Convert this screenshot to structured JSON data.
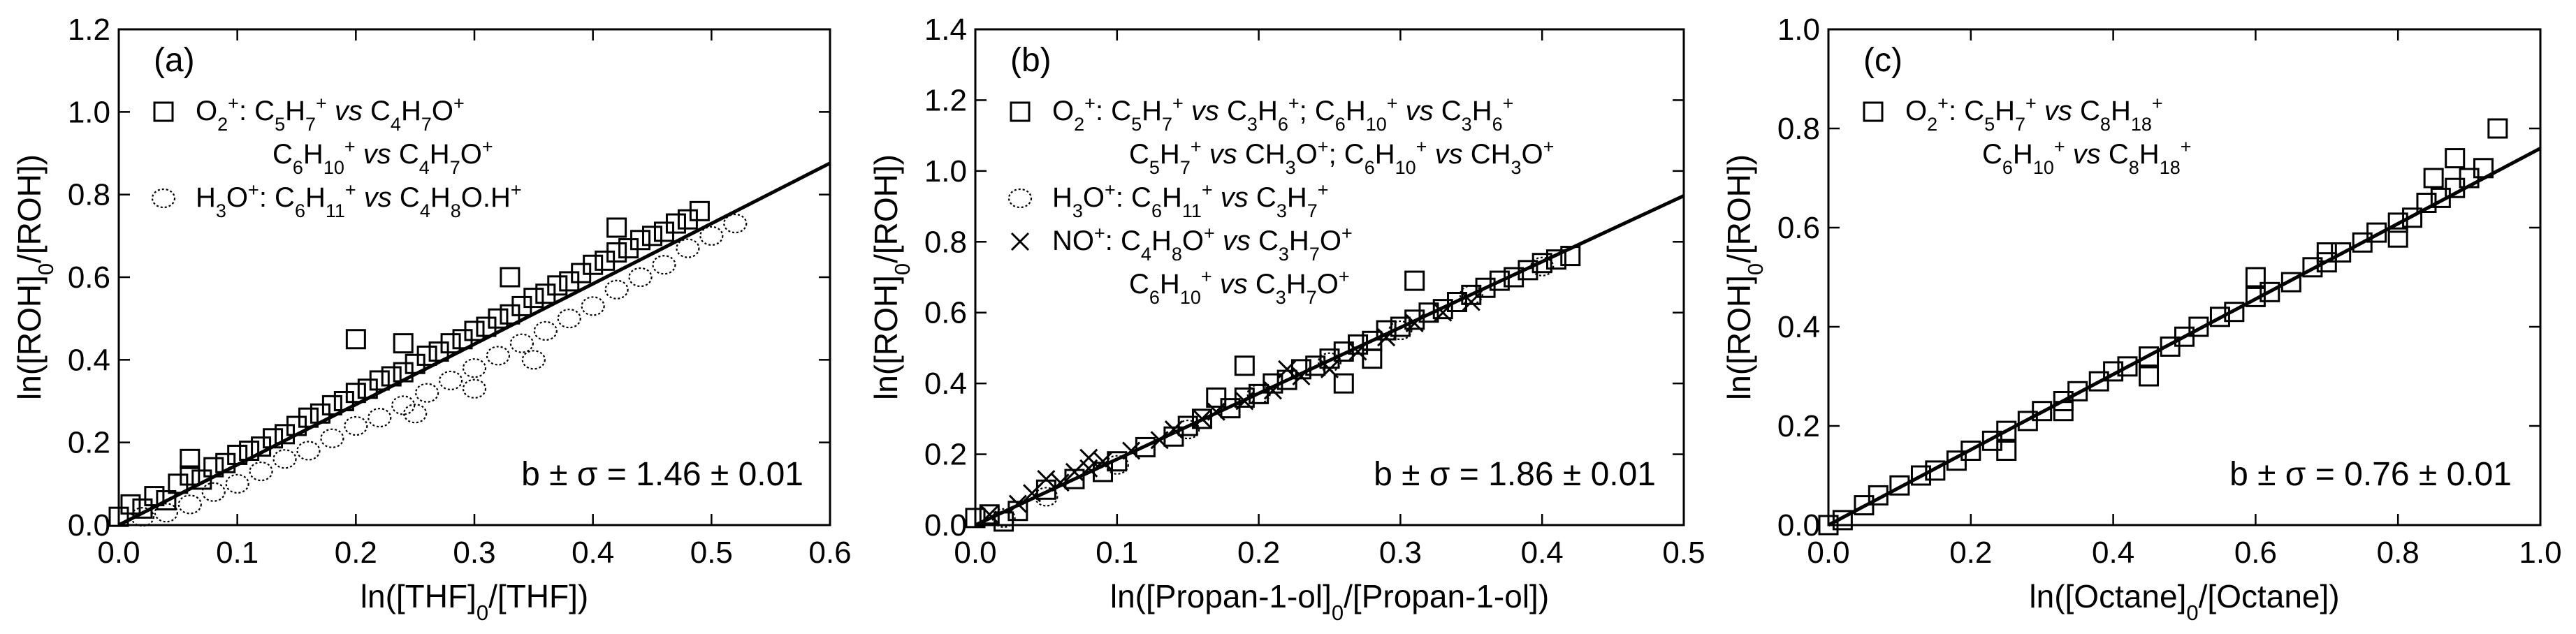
{
  "figure": {
    "panels": [
      {
        "id": "a",
        "letter": "(a)",
        "annotation": "b ± σ = 1.46 ± 0.01",
        "xlabel": "ln([THF]0/[THF])",
        "ylabel": "ln([ROH]0/[ROH])",
        "legend": [
          "O2+: C5H7+ vs C4H7O+",
          "C6H10+ vs C4H7O+",
          "H3O+: C6H11+ vs C4H8O.H+"
        ]
      },
      {
        "id": "b",
        "letter": "(b)",
        "annotation": "b ± σ = 1.86 ± 0.01",
        "xlabel": "ln([Propan-1-ol]0/[Propan-1-ol])",
        "ylabel": "ln([ROH]0/[ROH])",
        "legend": [
          "O2+: C5H7+ vs C3H6+; C6H10+ vs C3H6+",
          "C5H7+ vs CH3O+; C6H10+ vs CH3O+",
          "H3O+: C6H11+ vs C3H7+",
          "NO+: C4H8O+ vs C3H7O+",
          "C6H10+ vs C3H7O+"
        ]
      },
      {
        "id": "c",
        "letter": "(c)",
        "annotation": "b ± σ = 0.76 ± 0.01",
        "xlabel": "ln([Octane]0/[Octane])",
        "ylabel": "ln([ROH]0/[ROH])",
        "legend": [
          "O2+: C5H7+ vs C8H18+",
          "C6H10+ vs C8H18+"
        ]
      }
    ]
  },
  "chart_data": [
    {
      "type": "scatter",
      "panel": "a",
      "xlabel": "ln([THF]0/[THF])",
      "ylabel": "ln([ROH]0/[ROH])",
      "xlim": [
        0.0,
        0.6
      ],
      "ylim": [
        0.0,
        1.2
      ],
      "xticks": [
        0.0,
        0.1,
        0.2,
        0.3,
        0.4,
        0.5,
        0.6
      ],
      "yticks": [
        0.0,
        0.2,
        0.4,
        0.6,
        0.8,
        1.0,
        1.2
      ],
      "xtick_labels": [
        "0.0",
        "0.1",
        "0.2",
        "0.3",
        "0.4",
        "0.5",
        "0.6"
      ],
      "ytick_labels": [
        "0.0",
        "0.2",
        "0.4",
        "0.6",
        "0.8",
        "1.0",
        "1.2"
      ],
      "fit": {
        "slope": 1.46,
        "slope_error": 0.01,
        "x": [
          0.0,
          0.6
        ],
        "y": [
          0.0,
          0.876
        ]
      },
      "series": [
        {
          "name": "O2+: C5H7+ vs C4H7O+; C6H10+ vs C4H7O+",
          "marker": "square",
          "points": [
            [
              0.0,
              0.02
            ],
            [
              0.01,
              0.05
            ],
            [
              0.02,
              0.04
            ],
            [
              0.03,
              0.07
            ],
            [
              0.04,
              0.06
            ],
            [
              0.05,
              0.1
            ],
            [
              0.06,
              0.12
            ],
            [
              0.07,
              0.11
            ],
            [
              0.08,
              0.14
            ],
            [
              0.09,
              0.15
            ],
            [
              0.1,
              0.17
            ],
            [
              0.11,
              0.18
            ],
            [
              0.12,
              0.19
            ],
            [
              0.13,
              0.21
            ],
            [
              0.14,
              0.22
            ],
            [
              0.15,
              0.24
            ],
            [
              0.16,
              0.26
            ],
            [
              0.17,
              0.27
            ],
            [
              0.18,
              0.29
            ],
            [
              0.19,
              0.3
            ],
            [
              0.2,
              0.32
            ],
            [
              0.21,
              0.33
            ],
            [
              0.22,
              0.35
            ],
            [
              0.23,
              0.36
            ],
            [
              0.24,
              0.37
            ],
            [
              0.25,
              0.39
            ],
            [
              0.26,
              0.41
            ],
            [
              0.27,
              0.42
            ],
            [
              0.28,
              0.44
            ],
            [
              0.29,
              0.45
            ],
            [
              0.3,
              0.47
            ],
            [
              0.31,
              0.48
            ],
            [
              0.32,
              0.5
            ],
            [
              0.33,
              0.51
            ],
            [
              0.34,
              0.53
            ],
            [
              0.35,
              0.55
            ],
            [
              0.36,
              0.56
            ],
            [
              0.37,
              0.58
            ],
            [
              0.38,
              0.59
            ],
            [
              0.39,
              0.61
            ],
            [
              0.4,
              0.63
            ],
            [
              0.41,
              0.64
            ],
            [
              0.42,
              0.66
            ],
            [
              0.43,
              0.67
            ],
            [
              0.44,
              0.69
            ],
            [
              0.45,
              0.7
            ],
            [
              0.46,
              0.71
            ],
            [
              0.47,
              0.73
            ],
            [
              0.48,
              0.74
            ],
            [
              0.49,
              0.76
            ],
            [
              0.2,
              0.45
            ],
            [
              0.24,
              0.44
            ],
            [
              0.06,
              0.16
            ],
            [
              0.33,
              0.6
            ],
            [
              0.42,
              0.72
            ]
          ]
        },
        {
          "name": "H3O+: C6H11+ vs C4H8O.H+",
          "marker": "dotted-circle",
          "points": [
            [
              0.02,
              0.02
            ],
            [
              0.04,
              0.03
            ],
            [
              0.06,
              0.05
            ],
            [
              0.08,
              0.08
            ],
            [
              0.1,
              0.1
            ],
            [
              0.12,
              0.13
            ],
            [
              0.14,
              0.16
            ],
            [
              0.16,
              0.18
            ],
            [
              0.18,
              0.21
            ],
            [
              0.2,
              0.24
            ],
            [
              0.22,
              0.26
            ],
            [
              0.24,
              0.29
            ],
            [
              0.26,
              0.32
            ],
            [
              0.28,
              0.35
            ],
            [
              0.3,
              0.38
            ],
            [
              0.32,
              0.41
            ],
            [
              0.34,
              0.44
            ],
            [
              0.36,
              0.47
            ],
            [
              0.38,
              0.5
            ],
            [
              0.4,
              0.53
            ],
            [
              0.42,
              0.57
            ],
            [
              0.44,
              0.6
            ],
            [
              0.46,
              0.63
            ],
            [
              0.48,
              0.67
            ],
            [
              0.5,
              0.7
            ],
            [
              0.52,
              0.73
            ],
            [
              0.25,
              0.27
            ],
            [
              0.35,
              0.4
            ],
            [
              0.3,
              0.33
            ]
          ]
        }
      ]
    },
    {
      "type": "scatter",
      "panel": "b",
      "xlabel": "ln([Propan-1-ol]0/[Propan-1-ol])",
      "ylabel": "ln([ROH]0/[ROH])",
      "xlim": [
        0.0,
        0.5
      ],
      "ylim": [
        0.0,
        1.4
      ],
      "xticks": [
        0.0,
        0.1,
        0.2,
        0.3,
        0.4,
        0.5
      ],
      "yticks": [
        0.0,
        0.2,
        0.4,
        0.6,
        0.8,
        1.0,
        1.2,
        1.4
      ],
      "xtick_labels": [
        "0.0",
        "0.1",
        "0.2",
        "0.3",
        "0.4",
        "0.5"
      ],
      "ytick_labels": [
        "0.0",
        "0.2",
        "0.4",
        "0.6",
        "0.8",
        "1.0",
        "1.2",
        "1.4"
      ],
      "fit": {
        "slope": 1.86,
        "slope_error": 0.01,
        "x": [
          0.0,
          0.5
        ],
        "y": [
          0.0,
          0.93
        ]
      },
      "series": [
        {
          "name": "O2+: C5H7+ vs C3H6+; C6H10+ vs C3H6+; C5H7+ vs CH3O+; C6H10+ vs CH3O+",
          "marker": "square",
          "points": [
            [
              0.0,
              0.02
            ],
            [
              0.01,
              0.03
            ],
            [
              0.02,
              0.01
            ],
            [
              0.03,
              0.04
            ],
            [
              0.05,
              0.1
            ],
            [
              0.07,
              0.13
            ],
            [
              0.09,
              0.15
            ],
            [
              0.1,
              0.18
            ],
            [
              0.12,
              0.22
            ],
            [
              0.14,
              0.25
            ],
            [
              0.15,
              0.28
            ],
            [
              0.16,
              0.3
            ],
            [
              0.18,
              0.33
            ],
            [
              0.19,
              0.36
            ],
            [
              0.2,
              0.37
            ],
            [
              0.21,
              0.4
            ],
            [
              0.22,
              0.41
            ],
            [
              0.23,
              0.44
            ],
            [
              0.24,
              0.45
            ],
            [
              0.25,
              0.47
            ],
            [
              0.26,
              0.49
            ],
            [
              0.27,
              0.51
            ],
            [
              0.28,
              0.52
            ],
            [
              0.29,
              0.55
            ],
            [
              0.3,
              0.56
            ],
            [
              0.31,
              0.58
            ],
            [
              0.32,
              0.6
            ],
            [
              0.33,
              0.61
            ],
            [
              0.34,
              0.63
            ],
            [
              0.35,
              0.65
            ],
            [
              0.36,
              0.67
            ],
            [
              0.37,
              0.69
            ],
            [
              0.38,
              0.7
            ],
            [
              0.39,
              0.72
            ],
            [
              0.4,
              0.74
            ],
            [
              0.41,
              0.75
            ],
            [
              0.42,
              0.76
            ],
            [
              0.19,
              0.45
            ],
            [
              0.26,
              0.4
            ],
            [
              0.31,
              0.69
            ],
            [
              0.17,
              0.36
            ],
            [
              0.28,
              0.47
            ]
          ]
        },
        {
          "name": "H3O+: C6H11+ vs C3H7+",
          "marker": "dotted-circle",
          "points": [
            [
              0.02,
              0.02
            ],
            [
              0.05,
              0.08
            ],
            [
              0.1,
              0.17
            ],
            [
              0.15,
              0.27
            ],
            [
              0.2,
              0.37
            ],
            [
              0.25,
              0.46
            ],
            [
              0.3,
              0.55
            ],
            [
              0.35,
              0.65
            ],
            [
              0.4,
              0.73
            ]
          ]
        },
        {
          "name": "NO+: C4H8O+ vs C3H7O+; C6H10+ vs C3H7O+",
          "marker": "cross",
          "points": [
            [
              0.01,
              0.03
            ],
            [
              0.03,
              0.06
            ],
            [
              0.04,
              0.09
            ],
            [
              0.06,
              0.12
            ],
            [
              0.07,
              0.15
            ],
            [
              0.08,
              0.16
            ],
            [
              0.09,
              0.18
            ],
            [
              0.11,
              0.21
            ],
            [
              0.13,
              0.24
            ],
            [
              0.14,
              0.27
            ],
            [
              0.16,
              0.3
            ],
            [
              0.17,
              0.32
            ],
            [
              0.19,
              0.35
            ],
            [
              0.21,
              0.38
            ],
            [
              0.23,
              0.42
            ],
            [
              0.25,
              0.44
            ],
            [
              0.27,
              0.49
            ],
            [
              0.29,
              0.53
            ],
            [
              0.31,
              0.57
            ],
            [
              0.33,
              0.6
            ],
            [
              0.35,
              0.63
            ],
            [
              0.05,
              0.13
            ],
            [
              0.08,
              0.19
            ],
            [
              0.22,
              0.44
            ]
          ]
        }
      ]
    },
    {
      "type": "scatter",
      "panel": "c",
      "xlabel": "ln([Octane]0/[Octane])",
      "ylabel": "ln([ROH]0/[ROH])",
      "xlim": [
        0.0,
        1.0
      ],
      "ylim": [
        0.0,
        1.0
      ],
      "xticks": [
        0.0,
        0.2,
        0.4,
        0.6,
        0.8,
        1.0
      ],
      "yticks": [
        0.0,
        0.2,
        0.4,
        0.6,
        0.8,
        1.0
      ],
      "xtick_labels": [
        "0.0",
        "0.2",
        "0.4",
        "0.6",
        "0.8",
        "1.0"
      ],
      "ytick_labels": [
        "0.0",
        "0.2",
        "0.4",
        "0.6",
        "0.8",
        "1.0"
      ],
      "fit": {
        "slope": 0.76,
        "slope_error": 0.01,
        "x": [
          0.0,
          1.0
        ],
        "y": [
          0.0,
          0.76
        ]
      },
      "series": [
        {
          "name": "O2+: C5H7+ vs C8H18+; C6H10+ vs C8H18+",
          "marker": "square",
          "points": [
            [
              0.0,
              0.0
            ],
            [
              0.02,
              0.01
            ],
            [
              0.05,
              0.04
            ],
            [
              0.07,
              0.06
            ],
            [
              0.1,
              0.08
            ],
            [
              0.13,
              0.1
            ],
            [
              0.15,
              0.11
            ],
            [
              0.18,
              0.13
            ],
            [
              0.2,
              0.15
            ],
            [
              0.23,
              0.17
            ],
            [
              0.25,
              0.19
            ],
            [
              0.28,
              0.21
            ],
            [
              0.3,
              0.23
            ],
            [
              0.33,
              0.25
            ],
            [
              0.35,
              0.27
            ],
            [
              0.38,
              0.29
            ],
            [
              0.4,
              0.31
            ],
            [
              0.42,
              0.32
            ],
            [
              0.45,
              0.34
            ],
            [
              0.48,
              0.36
            ],
            [
              0.5,
              0.38
            ],
            [
              0.52,
              0.4
            ],
            [
              0.55,
              0.42
            ],
            [
              0.57,
              0.43
            ],
            [
              0.6,
              0.46
            ],
            [
              0.62,
              0.47
            ],
            [
              0.65,
              0.49
            ],
            [
              0.68,
              0.52
            ],
            [
              0.7,
              0.53
            ],
            [
              0.72,
              0.55
            ],
            [
              0.75,
              0.57
            ],
            [
              0.77,
              0.59
            ],
            [
              0.8,
              0.61
            ],
            [
              0.82,
              0.62
            ],
            [
              0.84,
              0.65
            ],
            [
              0.86,
              0.66
            ],
            [
              0.88,
              0.68
            ],
            [
              0.9,
              0.7
            ],
            [
              0.92,
              0.72
            ],
            [
              0.94,
              0.8
            ],
            [
              0.8,
              0.58
            ],
            [
              0.85,
              0.7
            ],
            [
              0.33,
              0.23
            ],
            [
              0.25,
              0.15
            ],
            [
              0.6,
              0.5
            ],
            [
              0.7,
              0.55
            ],
            [
              0.88,
              0.74
            ],
            [
              0.45,
              0.3
            ]
          ]
        }
      ]
    }
  ]
}
